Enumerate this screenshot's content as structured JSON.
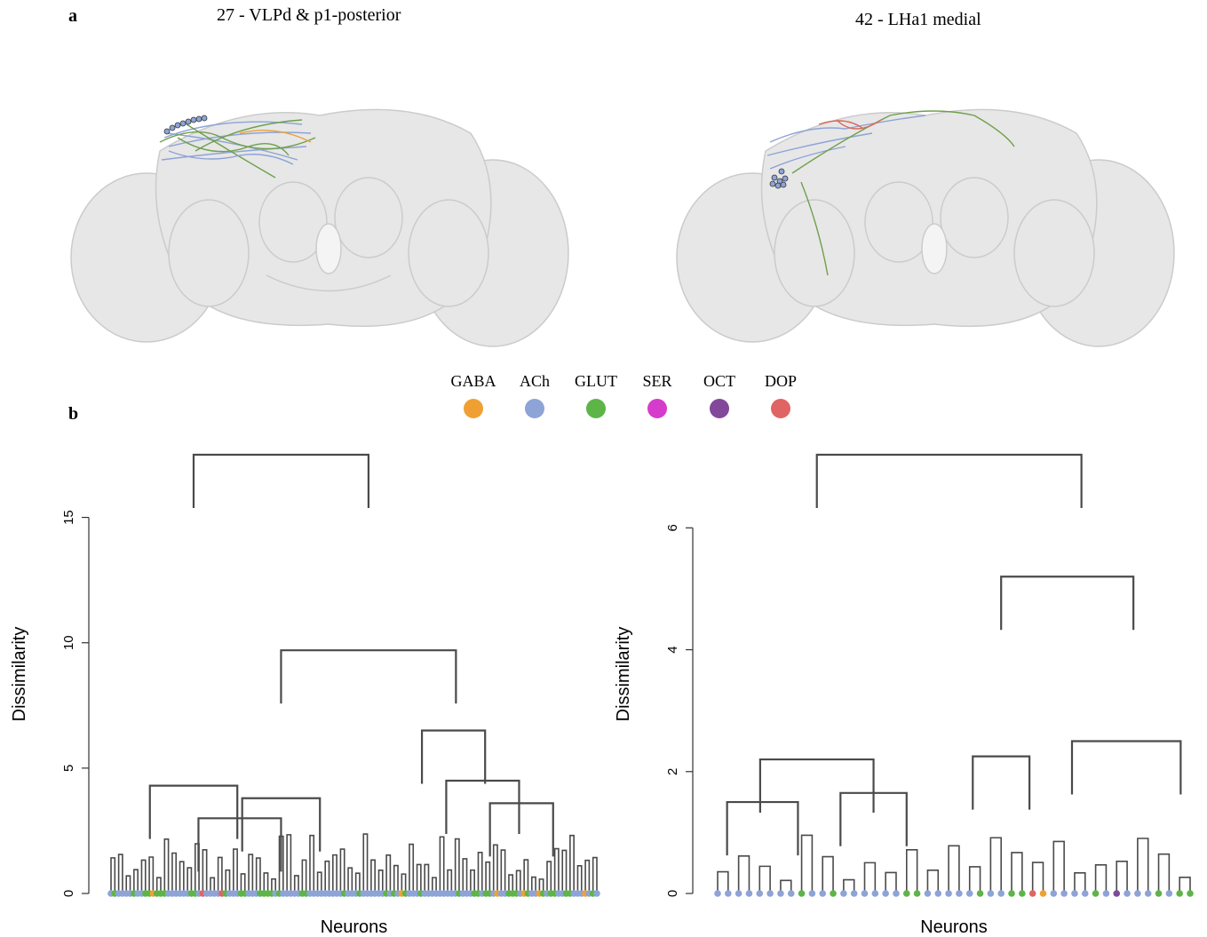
{
  "panel_a": {
    "label": "a",
    "brains": [
      {
        "title": "27 - VLPd & p1-posterior",
        "neuron_colors": [
          "#8ea3d6",
          "#6ea04b",
          "#e8a23a"
        ]
      },
      {
        "title": "42 - LHa1 medial",
        "neuron_colors": [
          "#8ea3d6",
          "#6ea04b",
          "#d96a5e"
        ]
      }
    ]
  },
  "panel_b": {
    "label": "b"
  },
  "legend": {
    "items": [
      {
        "label": "GABA",
        "color": "#f0a033"
      },
      {
        "label": "ACh",
        "color": "#8ea3d6"
      },
      {
        "label": "GLUT",
        "color": "#5db548"
      },
      {
        "label": "SER",
        "color": "#d63ccc"
      },
      {
        "label": "OCT",
        "color": "#82489a"
      },
      {
        "label": "DOP",
        "color": "#e06464"
      }
    ]
  },
  "chart_data": [
    {
      "type": "dendrogram",
      "xlabel": "Neurons",
      "ylabel": "Dissimilarity",
      "ylim": [
        0,
        17.5
      ],
      "yticks": [
        "0",
        "5",
        "10",
        "15"
      ],
      "n_leaves": 128,
      "merges": [
        {
          "height": 17.5,
          "left": 0.17,
          "right": 0.53
        },
        {
          "height": 9.7,
          "left": 0.35,
          "right": 0.71
        },
        {
          "height": 6.5,
          "left": 0.64,
          "right": 0.77
        },
        {
          "height": 4.5,
          "left": 0.69,
          "right": 0.84
        },
        {
          "height": 4.3,
          "left": 0.08,
          "right": 0.26
        },
        {
          "height": 3.8,
          "left": 0.27,
          "right": 0.43
        },
        {
          "height": 3.6,
          "left": 0.78,
          "right": 0.91
        },
        {
          "height": 3.0,
          "left": 0.18,
          "right": 0.35
        }
      ],
      "leaf_classes": [
        "ACh",
        "GLUT",
        "DOP",
        "GABA"
      ]
    },
    {
      "type": "dendrogram",
      "xlabel": "Neurons",
      "ylabel": "Dissimilarity",
      "ylim": [
        0,
        7.2
      ],
      "yticks": [
        "0",
        "2",
        "4",
        "6"
      ],
      "n_leaves": 46,
      "merges": [
        {
          "height": 7.2,
          "left": 0.21,
          "right": 0.77
        },
        {
          "height": 5.2,
          "left": 0.6,
          "right": 0.88
        },
        {
          "height": 2.5,
          "left": 0.75,
          "right": 0.98
        },
        {
          "height": 2.25,
          "left": 0.54,
          "right": 0.66
        },
        {
          "height": 2.2,
          "left": 0.09,
          "right": 0.33
        },
        {
          "height": 1.65,
          "left": 0.26,
          "right": 0.4
        },
        {
          "height": 1.5,
          "left": 0.02,
          "right": 0.17
        }
      ],
      "leaf_classes": [
        "ACh",
        "GLUT",
        "OCT",
        "DOP",
        "GABA"
      ]
    }
  ]
}
